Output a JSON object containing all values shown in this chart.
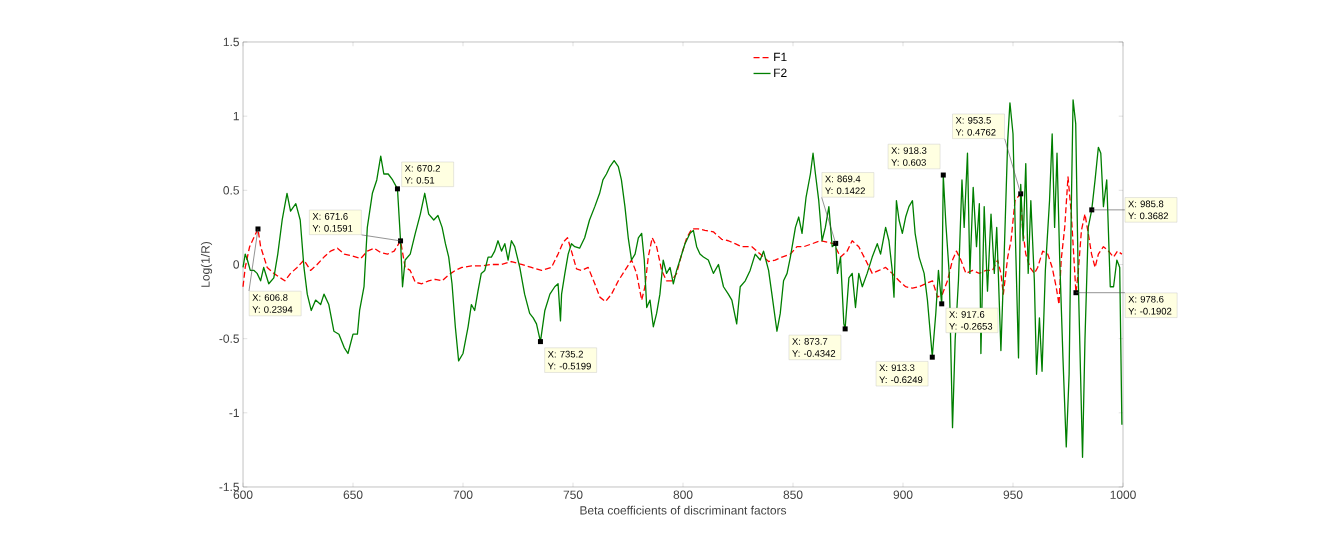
{
  "chart_data": {
    "type": "line",
    "xlabel": "Beta coefficients of discriminant factors",
    "ylabel": "Log(1/R)",
    "xlim": [
      600,
      1000
    ],
    "ylim": [
      -1.5,
      1.5
    ],
    "xticks": [
      600,
      650,
      700,
      750,
      800,
      850,
      900,
      950,
      1000
    ],
    "yticks": [
      -1.5,
      -1,
      -0.5,
      0,
      0.5,
      1,
      1.5
    ],
    "grid": false,
    "legend": "top",
    "marker": "none",
    "series": [
      {
        "name": "F1",
        "color": "#ff0000",
        "line_style": "dashed",
        "x": [
          600,
          601,
          603,
          606.8,
          608,
          611,
          614,
          617,
          619,
          621.6,
          624.6,
          627.7,
          630.7,
          633.7,
          636.8,
          639.8,
          642.9,
          646,
          649,
          653.5,
          656.5,
          659.6,
          662.6,
          665.7,
          668.7,
          671.6,
          673.7,
          676,
          678.3,
          681.3,
          684.4,
          687.4,
          690.5,
          693.5,
          696.5,
          699.5,
          703.8,
          708.3,
          712.9,
          717.5,
          722,
          726.6,
          731.1,
          735.7,
          740.2,
          743.2,
          745.5,
          747.5,
          749.3,
          751.6,
          753.9,
          756.9,
          759.9,
          762.2,
          764.8,
          767.5,
          770.6,
          773.6,
          776.6,
          778.9,
          781.2,
          782.7,
          784.2,
          786,
          788,
          790.3,
          792.5,
          794.8,
          797.1,
          799.4,
          801.7,
          804,
          807,
          810,
          813.8,
          817.6,
          820.6,
          823.7,
          826.7,
          828.3,
          831.3,
          835.1,
          838.9,
          841.9,
          845,
          848.8,
          851.8,
          854.9,
          858.7,
          862.5,
          865.5,
          868.5,
          871.6,
          874.6,
          876.9,
          879.9,
          883,
          886,
          889.1,
          892.1,
          895.1,
          898.2,
          901.2,
          904.3,
          907.3,
          910.3,
          913.4,
          915.7,
          917.9,
          920.2,
          922.5,
          924.3,
          926.3,
          928.6,
          931.6,
          934.7,
          937.7,
          940.7,
          943,
          944.5,
          945.6,
          947.6,
          949.1,
          950.9,
          953.5,
          954.3,
          955.8,
          957.7,
          959.7,
          961.2,
          963.5,
          965.8,
          967.8,
          969.6,
          970.9,
          971.9,
          973.5,
          975,
          976.5,
          978.6,
          979.6,
          981.1,
          982.7,
          984.2,
          985.7,
          987.3,
          988.8,
          991.1,
          993.4,
          995.7,
          997.5,
          999.5
        ],
        "values": [
          -0.15,
          -0.02,
          0.12,
          0.24,
          0.12,
          -0.02,
          -0.06,
          -0.09,
          -0.11,
          -0.06,
          -0.02,
          0.03,
          -0.04,
          0.0,
          0.05,
          0.09,
          0.11,
          0.07,
          0.06,
          0.04,
          0.09,
          0.11,
          0.08,
          0.07,
          0.09,
          0.16,
          -0.02,
          -0.04,
          -0.12,
          -0.13,
          -0.11,
          -0.1,
          -0.11,
          -0.07,
          -0.04,
          -0.02,
          -0.01,
          -0.01,
          0.0,
          0.0,
          0.02,
          0.0,
          -0.02,
          -0.04,
          -0.02,
          0.07,
          0.15,
          0.18,
          0.09,
          -0.03,
          -0.04,
          -0.02,
          -0.13,
          -0.22,
          -0.25,
          -0.2,
          -0.11,
          -0.04,
          0.03,
          -0.06,
          -0.24,
          -0.15,
          0.05,
          0.18,
          0.12,
          -0.04,
          -0.11,
          -0.11,
          -0.06,
          0.07,
          0.18,
          0.24,
          0.24,
          0.23,
          0.22,
          0.17,
          0.16,
          0.14,
          0.12,
          0.12,
          0.12,
          0.07,
          0.02,
          0.03,
          0.05,
          0.07,
          0.12,
          0.12,
          0.14,
          0.16,
          0.15,
          0.14,
          0.05,
          0.09,
          0.16,
          0.12,
          0.03,
          -0.06,
          -0.04,
          -0.02,
          -0.06,
          -0.11,
          -0.15,
          -0.16,
          -0.15,
          -0.13,
          -0.11,
          -0.22,
          -0.2,
          -0.11,
          0.03,
          0.09,
          0.03,
          -0.06,
          -0.04,
          -0.06,
          -0.04,
          -0.04,
          0.03,
          -0.06,
          -0.2,
          0.05,
          0.16,
          0.43,
          0.48,
          0.25,
          0.07,
          -0.02,
          -0.06,
          -0.02,
          0.09,
          0.07,
          -0.02,
          -0.15,
          -0.27,
          0.03,
          0.25,
          0.59,
          0.34,
          -0.19,
          -0.06,
          0.23,
          0.34,
          0.21,
          0.07,
          -0.02,
          0.07,
          0.12,
          0.09,
          0.05,
          0.09,
          0.07
        ]
      },
      {
        "name": "F2",
        "color": "#007f00",
        "line_style": "solid",
        "x": [
          600,
          601,
          602,
          603.3,
          605,
          606.4,
          608,
          609.4,
          611.7,
          614,
          615.8,
          617.8,
          620,
          621.6,
          624,
          626,
          627.7,
          629.2,
          631,
          633,
          635.3,
          636.8,
          639,
          641.3,
          643.6,
          646,
          647.7,
          650,
          652,
          653,
          655,
          656.5,
          658.8,
          660.8,
          662.6,
          664,
          666,
          668,
          670.2,
          671.6,
          672.5,
          673.7,
          676,
          678.3,
          680.6,
          682.6,
          684.4,
          686.7,
          688.6,
          690.5,
          692,
          693.5,
          695,
          696.5,
          698,
          700,
          702.3,
          703.8,
          705.3,
          706.8,
          708.3,
          709.9,
          711.4,
          712.9,
          714.4,
          715.9,
          717.5,
          719,
          720.5,
          722,
          723.5,
          725.8,
          728,
          730.3,
          731.9,
          733.4,
          735.2,
          737.2,
          739.5,
          741.7,
          743.2,
          744.3,
          744.8,
          746.3,
          747.8,
          749.3,
          750.8,
          753,
          755.3,
          757.5,
          759.9,
          762.1,
          763.6,
          765.2,
          766.8,
          768.7,
          770.6,
          772,
          773.6,
          775.1,
          776.6,
          778.2,
          779.7,
          781.2,
          782.4,
          783.5,
          785,
          786.5,
          788,
          789.5,
          791,
          792.5,
          794.1,
          795.6,
          797.1,
          798.6,
          800.9,
          803.2,
          804.7,
          806.2,
          807.7,
          809.3,
          811.5,
          813.8,
          816.1,
          818.4,
          820.6,
          822.2,
          824.4,
          826,
          828.3,
          830.5,
          832.8,
          835.1,
          836.6,
          838.9,
          840.4,
          842.7,
          844.2,
          845.7,
          847.3,
          848.8,
          851.1,
          852.6,
          854.1,
          855.9,
          857.9,
          859.1,
          860.2,
          861.7,
          863.2,
          864.7,
          866.3,
          867.8,
          869.4,
          870.2,
          871.6,
          873.1,
          873.7,
          875.4,
          876.9,
          878.4,
          879.9,
          881.5,
          883.7,
          886,
          888.3,
          889.8,
          892.1,
          893.6,
          895.1,
          895.9,
          897,
          898.2,
          899.7,
          901.2,
          902.7,
          904.3,
          905.5,
          907.3,
          909.6,
          911.1,
          913.3,
          914.9,
          916.1,
          917.6,
          918.3,
          919.5,
          921,
          922.5,
          923.7,
          925.2,
          926.8,
          927.8,
          929.3,
          930.4,
          931.9,
          933.4,
          934.7,
          935.4,
          936.9,
          938.4,
          940,
          941.5,
          942.6,
          944.5,
          946,
          947.6,
          948.6,
          950,
          951.2,
          952.5,
          953.5,
          954.6,
          955.8,
          956.9,
          958.1,
          959.7,
          960.7,
          962,
          963.2,
          964.7,
          966.6,
          967.8,
          968.9,
          970,
          971.2,
          972.7,
          974.2,
          975.5,
          976.5,
          977.3,
          978.5,
          979.6,
          980.7,
          981.6,
          982.7,
          984.2,
          985.8,
          987.3,
          988.8,
          989.9,
          991.1,
          992.6,
          994.2,
          995.7,
          997.2,
          998.5,
          999.5
        ],
        "values": [
          -0.02,
          0.07,
          0.03,
          -0.04,
          -0.04,
          -0.06,
          -0.11,
          -0.02,
          -0.13,
          -0.09,
          0.07,
          0.3,
          0.48,
          0.36,
          0.41,
          0.3,
          -0.02,
          -0.2,
          -0.31,
          -0.24,
          -0.27,
          -0.2,
          -0.27,
          -0.45,
          -0.47,
          -0.56,
          -0.6,
          -0.47,
          -0.47,
          -0.31,
          -0.15,
          0.25,
          0.48,
          0.57,
          0.73,
          0.61,
          0.61,
          0.57,
          0.51,
          0.16,
          -0.15,
          0.03,
          0.07,
          0.21,
          0.34,
          0.48,
          0.34,
          0.3,
          0.33,
          0.25,
          0.14,
          0.05,
          -0.13,
          -0.42,
          -0.65,
          -0.6,
          -0.42,
          -0.27,
          -0.31,
          -0.18,
          -0.06,
          -0.04,
          0.05,
          0.05,
          0.09,
          0.16,
          0.09,
          0.14,
          0.03,
          0.16,
          0.12,
          -0.02,
          -0.2,
          -0.33,
          -0.36,
          -0.4,
          -0.52,
          -0.31,
          -0.2,
          -0.15,
          -0.13,
          -0.38,
          -0.2,
          -0.06,
          0.07,
          0.14,
          0.12,
          0.11,
          0.18,
          0.3,
          0.39,
          0.48,
          0.57,
          0.61,
          0.66,
          0.7,
          0.66,
          0.57,
          0.39,
          0.18,
          0.03,
          0.07,
          0.18,
          0.21,
          0.03,
          -0.29,
          -0.24,
          -0.42,
          -0.33,
          -0.2,
          0.03,
          -0.06,
          -0.02,
          -0.13,
          -0.04,
          0.03,
          0.14,
          0.21,
          0.23,
          0.12,
          0.07,
          0.05,
          0.03,
          -0.06,
          0.0,
          -0.15,
          -0.2,
          -0.24,
          -0.4,
          -0.15,
          -0.11,
          -0.04,
          0.07,
          0.03,
          0.09,
          -0.04,
          -0.2,
          -0.45,
          -0.33,
          -0.11,
          -0.06,
          0.05,
          0.25,
          0.32,
          0.21,
          0.45,
          0.61,
          0.75,
          0.61,
          0.43,
          0.16,
          0.25,
          0.39,
          0.12,
          0.14,
          -0.06,
          0.05,
          -0.4,
          -0.43,
          -0.09,
          -0.06,
          -0.29,
          -0.06,
          -0.15,
          -0.06,
          0.05,
          0.14,
          0.07,
          0.25,
          0.16,
          -0.04,
          -0.22,
          0.43,
          0.3,
          0.21,
          0.32,
          0.39,
          0.43,
          0.21,
          0.05,
          -0.06,
          -0.24,
          -0.62,
          -0.33,
          -0.04,
          -0.27,
          0.6,
          0.27,
          -0.06,
          -1.1,
          -0.51,
          -0.11,
          0.57,
          0.25,
          0.75,
          -0.06,
          0.52,
          0.12,
          0.41,
          -0.6,
          0.39,
          -0.18,
          0.34,
          -0.06,
          0.25,
          -0.58,
          0.07,
          0.84,
          1.09,
          0.88,
          0.12,
          -0.63,
          0.54,
          0.16,
          0.68,
          -0.06,
          0.43,
          -0.11,
          -0.74,
          -0.36,
          -0.72,
          -0.04,
          0.43,
          0.88,
          0.25,
          0.75,
          0.05,
          -0.63,
          -1.23,
          -0.74,
          0.39,
          1.11,
          0.95,
          -0.06,
          -0.74,
          -1.3,
          -0.51,
          0.25,
          0.37,
          0.57,
          0.79,
          0.75,
          0.39,
          0.57,
          -0.15,
          -0.15,
          0.03,
          -0.02,
          -1.08
        ]
      }
    ],
    "annotations": [
      {
        "text": "X: 606.8 Y: 0.2394",
        "x": 606.8,
        "y": 0.2394
      },
      {
        "text": "X: 670.2 Y: 0.51",
        "x": 670.2,
        "y": 0.51
      },
      {
        "text": "X: 671.6 Y: 0.1591",
        "x": 671.6,
        "y": 0.1591
      },
      {
        "text": "X: 735.2 Y: -0.5199",
        "x": 735.2,
        "y": -0.5199
      },
      {
        "text": "X: 869.4 Y: 0.1422",
        "x": 869.4,
        "y": 0.1422
      },
      {
        "text": "X: 873.7 Y: -0.4342",
        "x": 873.7,
        "y": -0.4342
      },
      {
        "text": "X: 918.3 Y: 0.603",
        "x": 918.3,
        "y": 0.603
      },
      {
        "text": "X: 913.3 Y: -0.6249",
        "x": 913.3,
        "y": -0.6249
      },
      {
        "text": "X: 917.6 Y: -0.2653",
        "x": 917.6,
        "y": -0.2653
      },
      {
        "text": "X: 953.5 Y: 0.4762",
        "x": 953.5,
        "y": 0.4762
      },
      {
        "text": "X: 985.8 Y: 0.3682",
        "x": 985.8,
        "y": 0.3682
      },
      {
        "text": "X: 978.6 Y: -0.1902",
        "x": 978.6,
        "y": -0.1902
      }
    ]
  }
}
